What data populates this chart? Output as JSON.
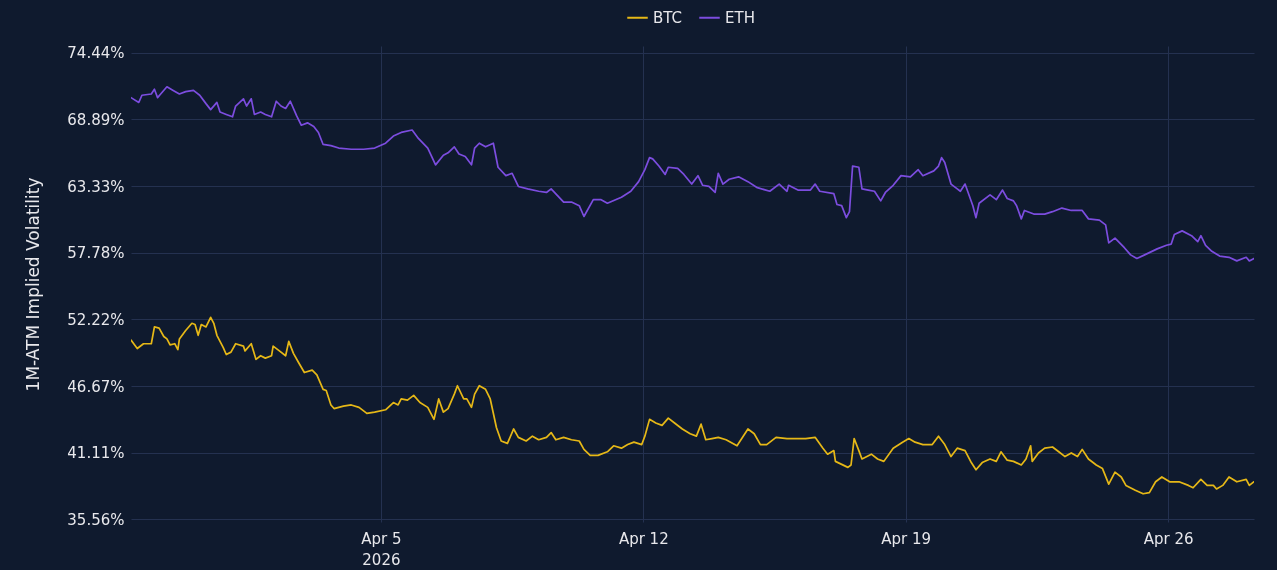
{
  "chart_data": {
    "type": "line",
    "ylabel": "1M-ATM Implied Volatility",
    "xlim": [
      "2026-03-29T08:00",
      "2026-04-28T07:00"
    ],
    "xticks": [
      {
        "value": "2026-04-05",
        "label": "Apr 5\n2026"
      },
      {
        "value": "2026-04-12",
        "label": "Apr 12"
      },
      {
        "value": "2026-04-19",
        "label": "Apr 19"
      },
      {
        "value": "2026-04-26",
        "label": "Apr 26"
      }
    ],
    "ylim": [
      35.35,
      75.0
    ],
    "yticks": [
      {
        "value": 35.56,
        "label": "35.56%"
      },
      {
        "value": 41.11,
        "label": "41.11%"
      },
      {
        "value": 46.67,
        "label": "46.67%"
      },
      {
        "value": 52.22,
        "label": "52.22%"
      },
      {
        "value": 57.78,
        "label": "57.78%"
      },
      {
        "value": 63.33,
        "label": "63.33%"
      },
      {
        "value": 68.89,
        "label": "68.89%"
      },
      {
        "value": 74.44,
        "label": "74.44%"
      }
    ],
    "grid": true,
    "legend": "top",
    "series": [
      {
        "name": "BTC",
        "color": "#e6b817",
        "x": [
          "2026-03-29T08:00",
          "2026-03-29T12:00",
          "2026-03-29T16:00",
          "2026-03-29T21:00",
          "2026-03-29T23:00",
          "2026-03-30T02:00",
          "2026-03-30T05:00",
          "2026-03-30T07:00",
          "2026-03-30T09:00",
          "2026-03-30T12:00",
          "2026-03-30T14:00",
          "2026-03-30T15:00",
          "2026-03-30T19:00",
          "2026-03-30T23:00",
          "2026-03-31T01:00",
          "2026-03-31T03:00",
          "2026-03-31T05:00",
          "2026-03-31T08:00",
          "2026-03-31T11:00",
          "2026-03-31T13:00",
          "2026-03-31T15:00",
          "2026-03-31T19:00",
          "2026-03-31T21:00",
          "2026-04-01T00:00",
          "2026-04-01T03:00",
          "2026-04-01T08:00",
          "2026-04-01T09:00",
          "2026-04-01T13:00",
          "2026-04-01T16:00",
          "2026-04-01T19:00",
          "2026-04-01T22:00",
          "2026-04-02T02:00",
          "2026-04-02T03:00",
          "2026-04-02T07:00",
          "2026-04-02T11:00",
          "2026-04-02T13:00",
          "2026-04-02T16:00",
          "2026-04-02T19:00",
          "2026-04-02T23:00",
          "2026-04-03T04:00",
          "2026-04-03T07:00",
          "2026-04-03T11:00",
          "2026-04-03T13:00",
          "2026-04-03T16:00",
          "2026-04-03T18:00",
          "2026-04-04T00:00",
          "2026-04-04T05:00",
          "2026-04-04T10:00",
          "2026-04-04T15:00",
          "2026-04-04T20:00",
          "2026-04-05T03:00",
          "2026-04-05T08:00",
          "2026-04-05T11:00",
          "2026-04-05T13:00",
          "2026-04-05T17:00",
          "2026-04-05T21:00",
          "2026-04-06T01:00",
          "2026-04-06T06:00",
          "2026-04-06T10:00",
          "2026-04-06T13:00",
          "2026-04-06T16:00",
          "2026-04-06T19:00",
          "2026-04-06T23:00",
          "2026-04-07T01:00",
          "2026-04-07T05:00",
          "2026-04-07T07:00",
          "2026-04-07T10:00",
          "2026-04-07T12:00",
          "2026-04-07T15:00",
          "2026-04-07T19:00",
          "2026-04-07T22:00",
          "2026-04-08T02:00",
          "2026-04-08T05:00",
          "2026-04-08T09:00",
          "2026-04-08T13:00",
          "2026-04-08T16:00",
          "2026-04-08T21:00",
          "2026-04-09T01:00",
          "2026-04-09T05:00",
          "2026-04-09T10:00",
          "2026-04-09T13:00",
          "2026-04-09T16:00",
          "2026-04-09T21:00",
          "2026-04-10T02:00",
          "2026-04-10T07:00",
          "2026-04-10T10:00",
          "2026-04-10T14:00",
          "2026-04-10T19:00",
          "2026-04-11T01:00",
          "2026-04-11T05:00",
          "2026-04-11T10:00",
          "2026-04-11T14:00",
          "2026-04-11T18:00",
          "2026-04-11T23:00",
          "2026-04-12T01:00",
          "2026-04-12T04:00",
          "2026-04-12T08:00",
          "2026-04-12T12:00",
          "2026-04-12T16:00",
          "2026-04-12T20:00",
          "2026-04-13T01:00",
          "2026-04-13T06:00",
          "2026-04-13T10:00",
          "2026-04-13T13:00",
          "2026-04-13T16:00",
          "2026-04-13T20:00",
          "2026-04-14T00:00",
          "2026-04-14T05:00",
          "2026-04-14T12:00",
          "2026-04-14T19:00",
          "2026-04-14T23:00",
          "2026-04-15T03:00",
          "2026-04-15T07:00",
          "2026-04-15T13:00",
          "2026-04-15T20:00",
          "2026-04-16T03:00",
          "2026-04-16T08:00",
          "2026-04-16T14:00",
          "2026-04-16T19:00",
          "2026-04-16T22:00",
          "2026-04-17T02:00",
          "2026-04-17T03:00",
          "2026-04-17T11:00",
          "2026-04-17T13:00",
          "2026-04-17T15:00",
          "2026-04-17T18:00",
          "2026-04-17T20:00",
          "2026-04-18T02:00",
          "2026-04-18T06:00",
          "2026-04-18T10:00",
          "2026-04-18T16:00",
          "2026-04-18T22:00",
          "2026-04-19T02:00",
          "2026-04-19T06:00",
          "2026-04-19T11:00",
          "2026-04-19T17:00",
          "2026-04-19T21:00",
          "2026-04-20T01:00",
          "2026-04-20T05:00",
          "2026-04-20T09:00",
          "2026-04-20T14:00",
          "2026-04-20T18:00",
          "2026-04-20T21:00",
          "2026-04-21T01:00",
          "2026-04-21T06:00",
          "2026-04-21T10:00",
          "2026-04-21T13:00",
          "2026-04-21T17:00",
          "2026-04-21T21:00",
          "2026-04-22T02:00",
          "2026-04-22T05:00",
          "2026-04-22T08:00",
          "2026-04-22T09:00",
          "2026-04-22T13:00",
          "2026-04-22T17:00",
          "2026-04-22T22:00",
          "2026-04-23T02:00",
          "2026-04-23T06:00",
          "2026-04-23T10:00",
          "2026-04-23T14:00",
          "2026-04-23T17:00",
          "2026-04-23T21:00",
          "2026-04-24T02:00",
          "2026-04-24T06:00",
          "2026-04-24T10:00",
          "2026-04-24T14:00",
          "2026-04-24T18:00",
          "2026-04-24T21:00",
          "2026-04-25T03:00",
          "2026-04-25T08:00",
          "2026-04-25T12:00",
          "2026-04-25T16:00",
          "2026-04-25T20:00",
          "2026-04-26T01:00",
          "2026-04-26T07:00",
          "2026-04-26T13:00",
          "2026-04-26T16:00",
          "2026-04-26T21:00",
          "2026-04-27T01:00",
          "2026-04-27T05:00",
          "2026-04-27T07:00",
          "2026-04-27T11:00",
          "2026-04-27T15:00",
          "2026-04-27T20:00",
          "2026-04-28T02:00",
          "2026-04-28T04:00",
          "2026-04-28T07:00"
        ],
        "values": [
          50.5,
          49.8,
          50.2,
          50.2,
          51.6,
          51.5,
          50.8,
          50.6,
          50.1,
          50.2,
          49.7,
          50.6,
          51.3,
          51.9,
          51.8,
          50.9,
          51.8,
          51.6,
          52.4,
          51.9,
          50.9,
          49.9,
          49.3,
          49.5,
          50.2,
          50.0,
          49.6,
          50.2,
          48.9,
          49.2,
          49.0,
          49.2,
          50.0,
          49.6,
          49.2,
          50.4,
          49.4,
          48.7,
          47.8,
          48.0,
          47.6,
          46.4,
          46.3,
          45.1,
          44.8,
          45.0,
          45.1,
          44.9,
          44.4,
          44.5,
          44.7,
          45.3,
          45.1,
          45.6,
          45.5,
          45.9,
          45.3,
          44.9,
          43.9,
          45.6,
          44.5,
          44.8,
          46.0,
          46.7,
          45.6,
          45.6,
          44.9,
          46.0,
          46.7,
          46.4,
          45.6,
          43.2,
          42.1,
          41.9,
          43.1,
          42.4,
          42.1,
          42.5,
          42.2,
          42.4,
          42.8,
          42.2,
          42.4,
          42.2,
          42.1,
          41.4,
          40.9,
          40.9,
          41.2,
          41.7,
          41.5,
          41.8,
          42.0,
          41.8,
          42.5,
          43.9,
          43.6,
          43.4,
          44.0,
          43.6,
          43.1,
          42.7,
          42.5,
          43.5,
          42.2,
          42.3,
          42.4,
          42.2,
          41.7,
          43.1,
          42.7,
          41.8,
          41.8,
          42.4,
          42.3,
          42.3,
          42.3,
          42.4,
          41.5,
          41.0,
          41.3,
          40.4,
          39.9,
          40.1,
          42.3,
          41.3,
          40.6,
          41.0,
          40.6,
          40.4,
          41.5,
          42.0,
          42.3,
          42.0,
          41.8,
          41.8,
          42.5,
          41.8,
          40.8,
          41.5,
          41.3,
          40.3,
          39.7,
          40.3,
          40.6,
          40.4,
          41.2,
          40.5,
          40.4,
          40.1,
          40.6,
          41.7,
          40.4,
          41.1,
          41.5,
          41.6,
          41.2,
          40.8,
          41.1,
          40.8,
          41.4,
          40.6,
          40.1,
          39.8,
          38.5,
          39.5,
          39.1,
          38.4,
          38.0,
          37.7,
          37.8,
          38.7,
          39.1,
          38.7,
          38.7,
          38.4,
          38.2,
          38.9,
          38.4,
          38.4,
          38.1,
          38.4,
          39.1,
          38.7,
          38.9,
          38.4,
          38.7
        ]
      },
      {
        "name": "ETH",
        "color": "#7c4ddf",
        "x": [
          "2026-03-29T08:00",
          "2026-03-29T13:00",
          "2026-03-29T15:00",
          "2026-03-29T21:00",
          "2026-03-29T23:00",
          "2026-03-30T01:00",
          "2026-03-30T03:00",
          "2026-03-30T07:00",
          "2026-03-30T11:00",
          "2026-03-30T15:00",
          "2026-03-30T19:00",
          "2026-03-31T00:00",
          "2026-03-31T04:00",
          "2026-03-31T08:00",
          "2026-03-31T11:00",
          "2026-03-31T15:00",
          "2026-03-31T17:00",
          "2026-03-31T21:00",
          "2026-04-01T01:00",
          "2026-04-01T03:00",
          "2026-04-01T08:00",
          "2026-04-01T10:00",
          "2026-04-01T13:00",
          "2026-04-01T15:00",
          "2026-04-01T19:00",
          "2026-04-01T22:00",
          "2026-04-02T02:00",
          "2026-04-02T05:00",
          "2026-04-02T08:00",
          "2026-04-02T11:00",
          "2026-04-02T14:00",
          "2026-04-02T18:00",
          "2026-04-02T21:00",
          "2026-04-03T01:00",
          "2026-04-03T05:00",
          "2026-04-03T08:00",
          "2026-04-03T11:00",
          "2026-04-03T16:00",
          "2026-04-03T21:00",
          "2026-04-04T05:00",
          "2026-04-04T13:00",
          "2026-04-04T20:00",
          "2026-04-05T03:00",
          "2026-04-05T08:00",
          "2026-04-05T13:00",
          "2026-04-05T20:00",
          "2026-04-06T00:00",
          "2026-04-06T06:00",
          "2026-04-06T11:00",
          "2026-04-06T16:00",
          "2026-04-06T19:00",
          "2026-04-06T23:00",
          "2026-04-07T02:00",
          "2026-04-07T06:00",
          "2026-04-07T10:00",
          "2026-04-07T12:00",
          "2026-04-07T15:00",
          "2026-04-07T19:00",
          "2026-04-08T00:00",
          "2026-04-08T03:00",
          "2026-04-08T08:00",
          "2026-04-08T12:00",
          "2026-04-08T16:00",
          "2026-04-08T22:00",
          "2026-04-09T05:00",
          "2026-04-09T10:00",
          "2026-04-09T13:00",
          "2026-04-09T21:00",
          "2026-04-10T02:00",
          "2026-04-10T07:00",
          "2026-04-10T10:00",
          "2026-04-10T16:00",
          "2026-04-10T21:00",
          "2026-04-11T01:00",
          "2026-04-11T10:00",
          "2026-04-11T16:00",
          "2026-04-11T21:00",
          "2026-04-12T01:00",
          "2026-04-12T04:00",
          "2026-04-12T06:00",
          "2026-04-12T10:00",
          "2026-04-12T14:00",
          "2026-04-12T16:00",
          "2026-04-12T22:00",
          "2026-04-13T02:00",
          "2026-04-13T07:00",
          "2026-04-13T11:00",
          "2026-04-13T14:00",
          "2026-04-13T18:00",
          "2026-04-13T22:00",
          "2026-04-14T00:00",
          "2026-04-14T03:00",
          "2026-04-14T07:00",
          "2026-04-14T13:00",
          "2026-04-14T19:00",
          "2026-04-15T01:00",
          "2026-04-15T09:00",
          "2026-04-15T15:00",
          "2026-04-15T20:00",
          "2026-04-15T21:00",
          "2026-04-16T03:00",
          "2026-04-16T11:00",
          "2026-04-16T14:00",
          "2026-04-16T17:00",
          "2026-04-17T02:00",
          "2026-04-17T04:00",
          "2026-04-17T07:00",
          "2026-04-17T10:00",
          "2026-04-17T12:00",
          "2026-04-17T14:00",
          "2026-04-17T18:00",
          "2026-04-17T20:00",
          "2026-04-18T00:00",
          "2026-04-18T04:00",
          "2026-04-18T08:00",
          "2026-04-18T11:00",
          "2026-04-18T16:00",
          "2026-04-18T21:00",
          "2026-04-19T03:00",
          "2026-04-19T08:00",
          "2026-04-19T11:00",
          "2026-04-19T18:00",
          "2026-04-19T21:00",
          "2026-04-19T23:00",
          "2026-04-20T01:00",
          "2026-04-20T05:00",
          "2026-04-20T09:00",
          "2026-04-20T11:00",
          "2026-04-20T14:00",
          "2026-04-20T19:00",
          "2026-04-20T21:00",
          "2026-04-20T23:00",
          "2026-04-21T06:00",
          "2026-04-21T10:00",
          "2026-04-21T14:00",
          "2026-04-21T17:00",
          "2026-04-21T21:00",
          "2026-04-21T23:00",
          "2026-04-22T02:00",
          "2026-04-22T04:00",
          "2026-04-22T10:00",
          "2026-04-22T17:00",
          "2026-04-22T22:00",
          "2026-04-23T04:00",
          "2026-04-23T10:00",
          "2026-04-23T17:00",
          "2026-04-23T21:00",
          "2026-04-24T04:00",
          "2026-04-24T08:00",
          "2026-04-24T10:00",
          "2026-04-24T14:00",
          "2026-04-24T20:00",
          "2026-04-25T00:00",
          "2026-04-25T04:00",
          "2026-04-25T09:00",
          "2026-04-25T17:00",
          "2026-04-25T23:00",
          "2026-04-26T02:00",
          "2026-04-26T04:00",
          "2026-04-26T09:00",
          "2026-04-26T15:00",
          "2026-04-26T19:00",
          "2026-04-26T21:00",
          "2026-04-27T00:00",
          "2026-04-27T04:00",
          "2026-04-27T09:00",
          "2026-04-27T15:00",
          "2026-04-27T20:00",
          "2026-04-28T02:00",
          "2026-04-28T04:00",
          "2026-04-28T07:00"
        ],
        "values": [
          70.7,
          70.3,
          70.9,
          71.0,
          71.4,
          70.7,
          71.0,
          71.6,
          71.3,
          71.0,
          71.2,
          71.3,
          70.9,
          70.2,
          69.7,
          70.3,
          69.5,
          69.3,
          69.1,
          70.0,
          70.6,
          70.0,
          70.6,
          69.3,
          69.5,
          69.3,
          69.1,
          70.4,
          70.0,
          69.8,
          70.4,
          69.2,
          68.4,
          68.6,
          68.3,
          67.8,
          66.8,
          66.7,
          66.5,
          66.4,
          66.4,
          66.5,
          66.9,
          67.5,
          67.8,
          68.0,
          67.3,
          66.5,
          65.1,
          65.9,
          66.1,
          66.6,
          66.0,
          65.8,
          65.1,
          66.5,
          66.9,
          66.6,
          66.9,
          64.9,
          64.2,
          64.4,
          63.3,
          63.1,
          62.9,
          62.8,
          63.1,
          62.0,
          62.0,
          61.7,
          60.8,
          62.2,
          62.2,
          61.9,
          62.4,
          62.9,
          63.7,
          64.7,
          65.7,
          65.6,
          65.0,
          64.3,
          64.9,
          64.8,
          64.3,
          63.5,
          64.2,
          63.4,
          63.3,
          62.8,
          64.4,
          63.5,
          63.9,
          64.1,
          63.7,
          63.2,
          62.9,
          63.5,
          62.9,
          63.4,
          63.0,
          63.0,
          63.5,
          62.9,
          62.7,
          61.8,
          61.7,
          60.7,
          61.2,
          65.0,
          64.9,
          63.1,
          63.0,
          62.9,
          62.1,
          62.8,
          63.4,
          64.2,
          64.1,
          64.7,
          64.2,
          64.6,
          65.0,
          65.7,
          65.3,
          63.5,
          63.1,
          62.9,
          63.5,
          61.7,
          60.7,
          61.9,
          62.6,
          62.2,
          63.0,
          62.3,
          62.1,
          61.7,
          60.6,
          61.3,
          61.0,
          61.0,
          61.2,
          61.5,
          61.3,
          61.3,
          60.6,
          60.5,
          60.1,
          58.6,
          59.0,
          58.2,
          57.6,
          57.3,
          57.6,
          58.1,
          58.4,
          58.5,
          59.3,
          59.6,
          59.2,
          58.7,
          59.2,
          58.4,
          57.9,
          57.5,
          57.4,
          57.1,
          57.4,
          57.1,
          57.3
        ]
      }
    ]
  }
}
